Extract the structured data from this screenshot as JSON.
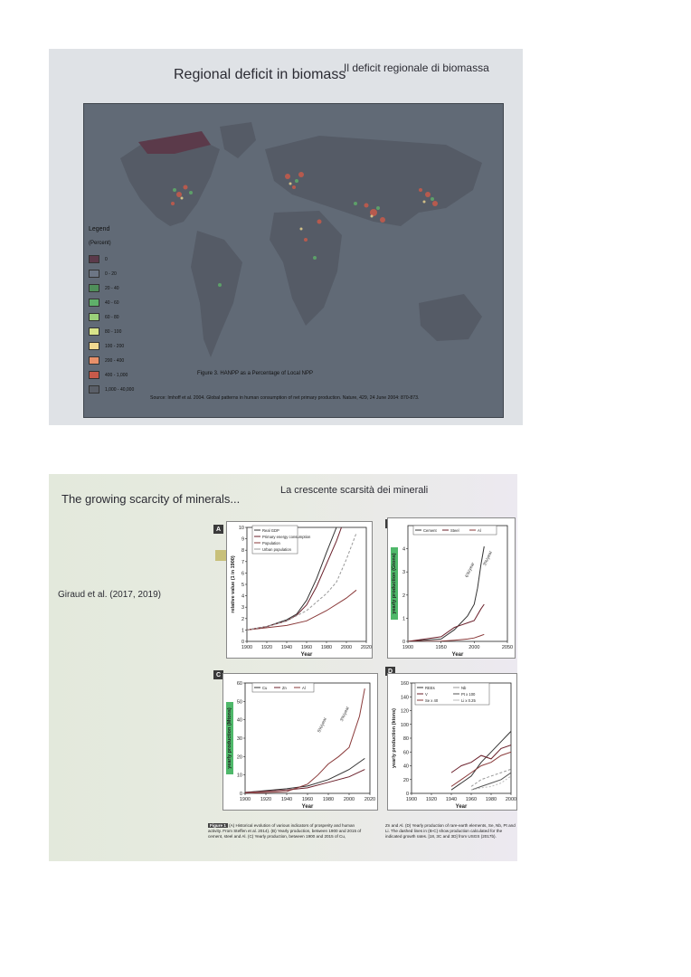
{
  "slide1": {
    "title_en": "Regional deficit in biomass",
    "title_it": "Il deficit regionale di biomassa",
    "legend_title": "Legend",
    "legend_subtitle": "(Percent)",
    "legend": [
      {
        "label": "0",
        "color": "#5b3a4a"
      },
      {
        "label": "0 - 20",
        "color": "#6d7685"
      },
      {
        "label": "20 - 40",
        "color": "#4f8f5a"
      },
      {
        "label": "40 - 60",
        "color": "#5fb06a"
      },
      {
        "label": "60 - 80",
        "color": "#9ad07a"
      },
      {
        "label": "80 - 100",
        "color": "#d8e48a"
      },
      {
        "label": "100 - 200",
        "color": "#f0d890"
      },
      {
        "label": "200 - 400",
        "color": "#e8906a"
      },
      {
        "label": "400 - 1,000",
        "color": "#c85a4a"
      },
      {
        "label": "1,000 - 40,000",
        "color": "#5a5f68"
      }
    ],
    "figure_caption": "Figure 3. HANPP as a Percentage of Local NPP",
    "source": "Source: Imhoff et al. 2004. Global patterns in human consumption of net primary production. Nature, 429, 24 June 2004: 870-873."
  },
  "slide2": {
    "title_en": "The growing scarcity of minerals...",
    "title_it": "La crescente scarsità dei minerali",
    "citation": "Giraud et al. (2017, 2019)",
    "panels": {
      "A": {
        "label": "A",
        "ylabel": "relative value (1 in 1900)",
        "xlabel": "Year",
        "legend": [
          "Real GDP",
          "Primary energy consumption",
          "Population",
          "Urban population"
        ]
      },
      "B": {
        "label": "B",
        "ylabel": "yearly production (Gtons)",
        "xlabel": "Year",
        "legend": [
          "Cement",
          "Steel",
          "Al"
        ],
        "annotations": [
          "6%/year",
          "3%/year"
        ]
      },
      "C": {
        "label": "C",
        "ylabel": "yearly production (Mtons)",
        "xlabel": "Year",
        "legend": [
          "Cu",
          "Zn",
          "Al"
        ],
        "annotations": [
          "5%/year",
          "3%/year"
        ]
      },
      "D": {
        "label": "D",
        "ylabel": "yearly production (ktons)",
        "xlabel": "Year",
        "legend": [
          "REEs",
          "V",
          "Se x 40",
          "Nb",
          "Pt x 100",
          "Li x 0.25"
        ]
      }
    },
    "figure_label": "Figure 1",
    "caption_left": "(A) Historical evolution of various indicators of prosperity and human activity. From Steffen et al. 2014). (B) Yearly production, between 1900 and 2015 of cement, steel and Al. (C) Yearly production, between 1900 and 2015 of Cu,",
    "caption_right": "Zn and Al. (D) Yearly production of rare-earth elements, Se, Nb, Pt and Li. The dashed lines in (B-C) show production calculated for the indicated growth rates. [18, 3C and 3D] from USGS (2017b)."
  },
  "chart_data": [
    {
      "type": "line",
      "title": "A",
      "xlabel": "Year",
      "ylabel": "relative value (1 in 1900)",
      "xlim": [
        1900,
        2020
      ],
      "ylim": [
        0,
        10
      ],
      "x_ticks": [
        1900,
        1920,
        1940,
        1960,
        1980,
        2000,
        2020
      ],
      "y_ticks": [
        0,
        1,
        2,
        3,
        4,
        5,
        6,
        7,
        8,
        9,
        10
      ],
      "series": [
        {
          "name": "Real GDP",
          "x": [
            1900,
            1920,
            1940,
            1950,
            1960,
            1970,
            1980,
            1990
          ],
          "values": [
            1,
            1.3,
            1.9,
            2.4,
            3.6,
            5.5,
            7.8,
            10
          ]
        },
        {
          "name": "Primary energy consumption",
          "x": [
            1900,
            1920,
            1940,
            1950,
            1960,
            1970,
            1980,
            1990,
            1995
          ],
          "values": [
            1,
            1.3,
            1.8,
            2.3,
            3.2,
            4.8,
            6.8,
            8.8,
            10
          ]
        },
        {
          "name": "Population",
          "x": [
            1900,
            1920,
            1940,
            1960,
            1980,
            2000,
            2010
          ],
          "values": [
            1,
            1.2,
            1.4,
            1.8,
            2.7,
            3.8,
            4.5
          ]
        },
        {
          "name": "Urban population",
          "x": [
            1900,
            1920,
            1940,
            1960,
            1980,
            1990,
            2000,
            2010
          ],
          "values": [
            1,
            1.3,
            1.8,
            2.7,
            4.2,
            5.2,
            7.2,
            9.5
          ]
        }
      ]
    },
    {
      "type": "line",
      "title": "B",
      "xlabel": "Year",
      "ylabel": "yearly production (Gtons)",
      "xlim": [
        1900,
        2050
      ],
      "ylim": [
        0,
        5
      ],
      "x_ticks": [
        1900,
        1950,
        2000,
        2050
      ],
      "y_ticks": [
        0,
        1,
        2,
        3,
        4
      ],
      "series": [
        {
          "name": "Cement",
          "x": [
            1900,
            1950,
            1970,
            1980,
            1990,
            2000,
            2005,
            2010,
            2015
          ],
          "values": [
            0,
            0.1,
            0.5,
            0.8,
            1.1,
            1.6,
            2.3,
            3.3,
            4.1
          ]
        },
        {
          "name": "Steel",
          "x": [
            1900,
            1950,
            1970,
            1990,
            2000,
            2010,
            2015
          ],
          "values": [
            0,
            0.2,
            0.6,
            0.8,
            0.9,
            1.4,
            1.6
          ]
        },
        {
          "name": "Al",
          "x": [
            1900,
            1950,
            1970,
            1990,
            2000,
            2010,
            2015
          ],
          "values": [
            0,
            0.01,
            0.05,
            0.1,
            0.15,
            0.25,
            0.3
          ]
        }
      ]
    },
    {
      "type": "line",
      "title": "C",
      "xlabel": "Year",
      "ylabel": "yearly production (Mtons)",
      "xlim": [
        1900,
        2020
      ],
      "ylim": [
        0,
        60
      ],
      "x_ticks": [
        1900,
        1920,
        1940,
        1960,
        1980,
        2000,
        2020
      ],
      "y_ticks": [
        0,
        10,
        20,
        30,
        40,
        50,
        60
      ],
      "series": [
        {
          "name": "Cu",
          "x": [
            1900,
            1940,
            1960,
            1980,
            2000,
            2015
          ],
          "values": [
            0.5,
            2.5,
            4,
            7.5,
            13,
            19
          ]
        },
        {
          "name": "Zn",
          "x": [
            1900,
            1940,
            1960,
            1980,
            2000,
            2015
          ],
          "values": [
            0.5,
            1.8,
            3,
            6,
            9,
            13
          ]
        },
        {
          "name": "Al",
          "x": [
            1900,
            1940,
            1960,
            1970,
            1980,
            1990,
            2000,
            2010,
            2015
          ],
          "values": [
            0,
            1,
            5,
            10,
            16,
            20,
            25,
            42,
            57
          ]
        }
      ]
    },
    {
      "type": "line",
      "title": "D",
      "xlabel": "Year",
      "ylabel": "yearly production (ktons)",
      "xlim": [
        1900,
        2000
      ],
      "ylim": [
        0,
        160
      ],
      "x_ticks": [
        1900,
        1920,
        1940,
        1960,
        1980,
        2000
      ],
      "y_ticks": [
        0,
        20,
        40,
        60,
        80,
        100,
        120,
        140,
        160
      ],
      "series": [
        {
          "name": "REEs",
          "x": [
            1940,
            1950,
            1960,
            1970,
            1980,
            1990,
            2000
          ],
          "values": [
            5,
            15,
            25,
            45,
            60,
            75,
            90
          ]
        },
        {
          "name": "Se x 40",
          "x": [
            1940,
            1950,
            1960,
            1970,
            1980,
            1990,
            2000
          ],
          "values": [
            30,
            40,
            45,
            55,
            50,
            65,
            70
          ]
        },
        {
          "name": "Pt x 100",
          "x": [
            1940,
            1950,
            1960,
            1970,
            1980,
            1990,
            2000
          ],
          "values": [
            10,
            20,
            30,
            40,
            45,
            55,
            60
          ]
        },
        {
          "name": "V",
          "x": [
            1960,
            1970,
            1980,
            1990,
            2000
          ],
          "values": [
            10,
            20,
            25,
            30,
            35
          ]
        },
        {
          "name": "Nb",
          "x": [
            1960,
            1970,
            1980,
            1990,
            2000
          ],
          "values": [
            5,
            10,
            15,
            20,
            30
          ]
        },
        {
          "name": "Li x 0.25",
          "x": [
            1960,
            1970,
            1980,
            1990,
            2000
          ],
          "values": [
            5,
            8,
            10,
            15,
            25
          ]
        }
      ]
    }
  ]
}
